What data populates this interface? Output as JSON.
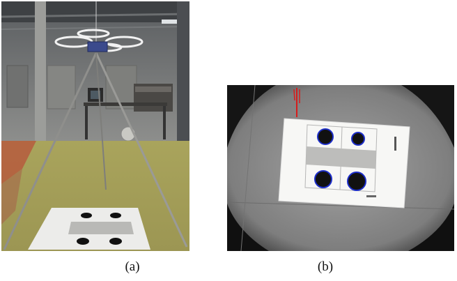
{
  "captions": {
    "a": "(a)",
    "b": "(b)"
  },
  "colors": {
    "floor_yellow": "#b4ac5a",
    "floor_red": "#b8523a",
    "target_blue": "#1d2ec9",
    "camera_gray": "#8a8a8a",
    "marker_red": "#d61c1c"
  },
  "icons": {
    "panel_a": "quadrotor-tripod-photo",
    "panel_b": "downward-camera-target-image"
  }
}
